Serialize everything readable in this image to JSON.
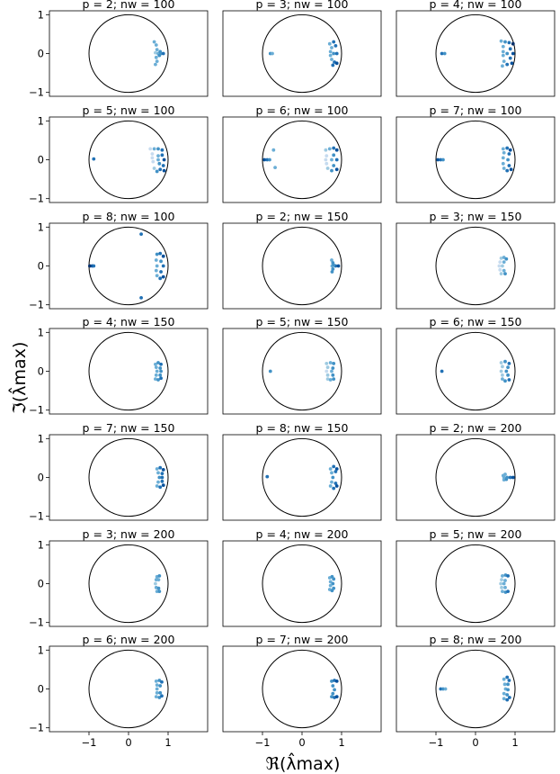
{
  "figure": {
    "xlabel": "ℜ(λ̂max)",
    "ylabel": "ℑ(λ̂max)"
  },
  "chart_data": {
    "type": "scatter",
    "xlim": [
      -2,
      2
    ],
    "ylim": [
      -1.1,
      1.1
    ],
    "xticks": [
      -1,
      0,
      1
    ],
    "yticks": [
      -1,
      0,
      1
    ],
    "grid": false,
    "reference_curve": "unit circle",
    "colormap": "Blues",
    "panels": [
      {
        "title": "p = 2; nw = 100",
        "p": 2,
        "nw": 100,
        "points": [
          [
            0.65,
            0.3
          ],
          [
            0.7,
            0.22
          ],
          [
            0.72,
            0.1
          ],
          [
            0.68,
            0.02
          ],
          [
            0.75,
            0.0
          ],
          [
            0.82,
            0.0
          ],
          [
            0.88,
            0.0
          ],
          [
            0.7,
            -0.1
          ],
          [
            0.72,
            -0.2
          ],
          [
            0.68,
            -0.28
          ],
          [
            0.8,
            0.05
          ],
          [
            0.78,
            -0.05
          ]
        ]
      },
      {
        "title": "p = 3; nw = 100",
        "p": 3,
        "nw": 100,
        "points": [
          [
            -0.8,
            0.0
          ],
          [
            -0.75,
            0.0
          ],
          [
            0.7,
            0.25
          ],
          [
            0.8,
            0.3
          ],
          [
            0.85,
            0.2
          ],
          [
            0.75,
            0.15
          ],
          [
            0.72,
            0.05
          ],
          [
            0.8,
            0.0
          ],
          [
            0.88,
            0.0
          ],
          [
            0.72,
            -0.05
          ],
          [
            0.75,
            -0.15
          ],
          [
            0.82,
            -0.22
          ],
          [
            0.78,
            -0.3
          ],
          [
            0.88,
            -0.25
          ]
        ]
      },
      {
        "title": "p = 4; nw = 100",
        "p": 4,
        "nw": 100,
        "points": [
          [
            -0.85,
            0.0
          ],
          [
            -0.78,
            0.0
          ],
          [
            0.65,
            0.32
          ],
          [
            0.75,
            0.3
          ],
          [
            0.85,
            0.28
          ],
          [
            0.95,
            0.25
          ],
          [
            0.7,
            0.18
          ],
          [
            0.88,
            0.12
          ],
          [
            0.7,
            0.05
          ],
          [
            0.8,
            0.0
          ],
          [
            0.95,
            0.0
          ],
          [
            0.7,
            -0.05
          ],
          [
            0.88,
            -0.12
          ],
          [
            0.72,
            -0.2
          ],
          [
            0.8,
            -0.28
          ],
          [
            0.92,
            -0.25
          ],
          [
            0.68,
            -0.32
          ]
        ]
      },
      {
        "title": "p = 5; nw = 100",
        "p": 5,
        "nw": 100,
        "points": [
          [
            -0.88,
            0.02
          ],
          [
            0.55,
            0.28
          ],
          [
            0.65,
            0.28
          ],
          [
            0.75,
            0.28
          ],
          [
            0.85,
            0.25
          ],
          [
            0.6,
            0.15
          ],
          [
            0.75,
            0.1
          ],
          [
            0.85,
            0.12
          ],
          [
            0.6,
            0.05
          ],
          [
            0.75,
            0.0
          ],
          [
            0.9,
            0.0
          ],
          [
            0.62,
            -0.05
          ],
          [
            0.78,
            -0.1
          ],
          [
            0.88,
            -0.15
          ],
          [
            0.65,
            -0.22
          ],
          [
            0.8,
            -0.25
          ],
          [
            0.9,
            -0.28
          ],
          [
            0.72,
            -0.3
          ]
        ]
      },
      {
        "title": "p = 6; nw = 100",
        "p": 6,
        "nw": 100,
        "points": [
          [
            -0.95,
            0.0
          ],
          [
            -0.88,
            0.0
          ],
          [
            -0.82,
            0.0
          ],
          [
            -0.72,
            0.25
          ],
          [
            -0.68,
            -0.2
          ],
          [
            0.6,
            0.25
          ],
          [
            0.7,
            0.28
          ],
          [
            0.8,
            0.3
          ],
          [
            0.88,
            0.25
          ],
          [
            0.62,
            0.1
          ],
          [
            0.8,
            0.12
          ],
          [
            0.6,
            0.0
          ],
          [
            0.75,
            0.0
          ],
          [
            0.88,
            0.0
          ],
          [
            0.62,
            -0.1
          ],
          [
            0.8,
            -0.15
          ],
          [
            0.65,
            -0.22
          ],
          [
            0.75,
            -0.28
          ],
          [
            0.88,
            -0.25
          ]
        ]
      },
      {
        "title": "p = 7; nw = 100",
        "p": 7,
        "nw": 100,
        "points": [
          [
            -0.95,
            0.0
          ],
          [
            -0.88,
            0.0
          ],
          [
            -0.82,
            0.0
          ],
          [
            0.7,
            0.28
          ],
          [
            0.8,
            0.3
          ],
          [
            0.88,
            0.25
          ],
          [
            0.72,
            0.18
          ],
          [
            0.85,
            0.15
          ],
          [
            0.7,
            0.05
          ],
          [
            0.82,
            0.0
          ],
          [
            0.7,
            -0.1
          ],
          [
            0.85,
            -0.15
          ],
          [
            0.72,
            -0.22
          ],
          [
            0.8,
            -0.28
          ],
          [
            0.9,
            -0.25
          ]
        ]
      },
      {
        "title": "p = 8; nw = 100",
        "p": 8,
        "nw": 100,
        "points": [
          [
            -0.98,
            0.0
          ],
          [
            -0.92,
            0.0
          ],
          [
            -0.88,
            0.0
          ],
          [
            0.32,
            0.82
          ],
          [
            0.32,
            -0.82
          ],
          [
            0.72,
            0.3
          ],
          [
            0.8,
            0.32
          ],
          [
            0.88,
            0.25
          ],
          [
            0.7,
            0.15
          ],
          [
            0.82,
            0.12
          ],
          [
            0.72,
            0.0
          ],
          [
            0.88,
            0.0
          ],
          [
            0.7,
            -0.12
          ],
          [
            0.82,
            -0.15
          ],
          [
            0.72,
            -0.25
          ],
          [
            0.8,
            -0.32
          ],
          [
            0.88,
            -0.28
          ]
        ]
      },
      {
        "title": "p = 2; nw = 150",
        "p": 2,
        "nw": 150,
        "points": [
          [
            0.75,
            0.15
          ],
          [
            0.78,
            0.08
          ],
          [
            0.76,
            0.0
          ],
          [
            0.85,
            0.0
          ],
          [
            0.92,
            0.0
          ],
          [
            0.78,
            -0.08
          ],
          [
            0.76,
            -0.15
          ],
          [
            0.8,
            0.02
          ]
        ]
      },
      {
        "title": "p = 3; nw = 150",
        "p": 3,
        "nw": 150,
        "points": [
          [
            0.65,
            0.2
          ],
          [
            0.72,
            0.22
          ],
          [
            0.78,
            0.18
          ],
          [
            0.62,
            0.1
          ],
          [
            0.72,
            0.1
          ],
          [
            0.6,
            0.0
          ],
          [
            0.68,
            0.0
          ],
          [
            0.62,
            -0.1
          ],
          [
            0.72,
            -0.12
          ],
          [
            0.65,
            -0.2
          ],
          [
            0.75,
            -0.2
          ]
        ]
      },
      {
        "title": "p = 4; nw = 150",
        "p": 4,
        "nw": 150,
        "points": [
          [
            0.68,
            0.18
          ],
          [
            0.75,
            0.22
          ],
          [
            0.82,
            0.18
          ],
          [
            0.7,
            0.1
          ],
          [
            0.8,
            0.08
          ],
          [
            0.72,
            0.0
          ],
          [
            0.82,
            0.0
          ],
          [
            0.7,
            -0.1
          ],
          [
            0.8,
            -0.1
          ],
          [
            0.68,
            -0.2
          ],
          [
            0.75,
            -0.22
          ],
          [
            0.82,
            -0.18
          ]
        ]
      },
      {
        "title": "p = 5; nw = 150",
        "p": 5,
        "nw": 150,
        "points": [
          [
            -0.8,
            0.0
          ],
          [
            0.62,
            0.2
          ],
          [
            0.72,
            0.22
          ],
          [
            0.8,
            0.2
          ],
          [
            0.65,
            0.1
          ],
          [
            0.78,
            0.08
          ],
          [
            0.62,
            0.0
          ],
          [
            0.75,
            0.0
          ],
          [
            0.65,
            -0.1
          ],
          [
            0.78,
            -0.1
          ],
          [
            0.65,
            -0.2
          ],
          [
            0.72,
            -0.22
          ],
          [
            0.8,
            -0.2
          ]
        ]
      },
      {
        "title": "p = 6; nw = 150",
        "p": 6,
        "nw": 150,
        "points": [
          [
            -0.85,
            0.0
          ],
          [
            0.65,
            0.22
          ],
          [
            0.75,
            0.25
          ],
          [
            0.85,
            0.2
          ],
          [
            0.68,
            0.12
          ],
          [
            0.82,
            0.1
          ],
          [
            0.65,
            0.0
          ],
          [
            0.78,
            0.0
          ],
          [
            0.68,
            -0.1
          ],
          [
            0.82,
            -0.1
          ],
          [
            0.68,
            -0.2
          ],
          [
            0.75,
            -0.25
          ],
          [
            0.85,
            -0.22
          ]
        ]
      },
      {
        "title": "p = 7; nw = 150",
        "p": 7,
        "nw": 150,
        "points": [
          [
            0.72,
            0.22
          ],
          [
            0.8,
            0.25
          ],
          [
            0.88,
            0.2
          ],
          [
            0.75,
            0.12
          ],
          [
            0.85,
            0.1
          ],
          [
            0.78,
            0.0
          ],
          [
            0.85,
            0.0
          ],
          [
            0.75,
            -0.12
          ],
          [
            0.85,
            -0.1
          ],
          [
            0.72,
            -0.22
          ],
          [
            0.8,
            -0.25
          ],
          [
            0.88,
            -0.2
          ]
        ]
      },
      {
        "title": "p = 8; nw = 150",
        "p": 8,
        "nw": 150,
        "points": [
          [
            -0.88,
            0.02
          ],
          [
            0.72,
            0.22
          ],
          [
            0.8,
            0.28
          ],
          [
            0.88,
            0.22
          ],
          [
            0.75,
            0.12
          ],
          [
            0.85,
            0.15
          ],
          [
            0.78,
            0.0
          ],
          [
            0.75,
            -0.12
          ],
          [
            0.85,
            -0.15
          ],
          [
            0.72,
            -0.22
          ],
          [
            0.8,
            -0.28
          ],
          [
            0.88,
            -0.22
          ]
        ]
      },
      {
        "title": "p = 2; nw = 200",
        "p": 2,
        "nw": 200,
        "points": [
          [
            0.7,
            0.05
          ],
          [
            0.75,
            0.08
          ],
          [
            0.72,
            0.0
          ],
          [
            0.8,
            0.0
          ],
          [
            0.88,
            0.0
          ],
          [
            0.95,
            0.0
          ],
          [
            0.72,
            -0.06
          ],
          [
            0.78,
            -0.05
          ]
        ]
      },
      {
        "title": "p = 3; nw = 200",
        "p": 3,
        "nw": 200,
        "points": [
          [
            0.72,
            0.18
          ],
          [
            0.78,
            0.2
          ],
          [
            0.7,
            0.1
          ],
          [
            0.76,
            0.1
          ],
          [
            0.68,
            0.0
          ],
          [
            0.7,
            -0.1
          ],
          [
            0.76,
            -0.12
          ],
          [
            0.72,
            -0.2
          ],
          [
            0.78,
            -0.2
          ]
        ]
      },
      {
        "title": "p = 4; nw = 200",
        "p": 4,
        "nw": 200,
        "points": [
          [
            0.7,
            0.15
          ],
          [
            0.76,
            0.18
          ],
          [
            0.8,
            0.12
          ],
          [
            0.72,
            0.05
          ],
          [
            0.78,
            0.0
          ],
          [
            0.72,
            -0.05
          ],
          [
            0.8,
            -0.12
          ],
          [
            0.7,
            -0.15
          ],
          [
            0.76,
            -0.18
          ]
        ]
      },
      {
        "title": "p = 5; nw = 200",
        "p": 5,
        "nw": 200,
        "points": [
          [
            0.68,
            0.2
          ],
          [
            0.76,
            0.22
          ],
          [
            0.82,
            0.2
          ],
          [
            0.66,
            0.1
          ],
          [
            0.75,
            0.08
          ],
          [
            0.64,
            0.0
          ],
          [
            0.72,
            0.0
          ],
          [
            0.66,
            -0.1
          ],
          [
            0.75,
            -0.1
          ],
          [
            0.68,
            -0.2
          ],
          [
            0.76,
            -0.22
          ],
          [
            0.82,
            -0.2
          ]
        ]
      },
      {
        "title": "p = 6; nw = 200",
        "p": 6,
        "nw": 200,
        "points": [
          [
            0.7,
            0.2
          ],
          [
            0.78,
            0.22
          ],
          [
            0.84,
            0.18
          ],
          [
            0.72,
            0.1
          ],
          [
            0.8,
            0.08
          ],
          [
            0.72,
            0.0
          ],
          [
            0.72,
            -0.1
          ],
          [
            0.8,
            -0.1
          ],
          [
            0.7,
            -0.2
          ],
          [
            0.78,
            -0.22
          ],
          [
            0.84,
            -0.18
          ]
        ]
      },
      {
        "title": "p = 7; nw = 200",
        "p": 7,
        "nw": 200,
        "points": [
          [
            0.75,
            0.2
          ],
          [
            0.82,
            0.22
          ],
          [
            0.88,
            0.2
          ],
          [
            0.78,
            0.08
          ],
          [
            0.82,
            -0.02
          ],
          [
            0.78,
            -0.12
          ],
          [
            0.75,
            -0.2
          ],
          [
            0.82,
            -0.22
          ],
          [
            0.88,
            -0.2
          ]
        ]
      },
      {
        "title": "p = 8; nw = 200",
        "p": 8,
        "nw": 200,
        "points": [
          [
            -0.88,
            0.0
          ],
          [
            -0.82,
            0.0
          ],
          [
            -0.76,
            0.0
          ],
          [
            0.72,
            0.25
          ],
          [
            0.8,
            0.3
          ],
          [
            0.85,
            0.22
          ],
          [
            0.74,
            0.12
          ],
          [
            0.82,
            0.12
          ],
          [
            0.76,
            0.0
          ],
          [
            0.82,
            -0.02
          ],
          [
            0.72,
            -0.12
          ],
          [
            0.8,
            -0.15
          ],
          [
            0.72,
            -0.25
          ],
          [
            0.8,
            -0.28
          ],
          [
            0.86,
            -0.22
          ]
        ]
      }
    ]
  }
}
